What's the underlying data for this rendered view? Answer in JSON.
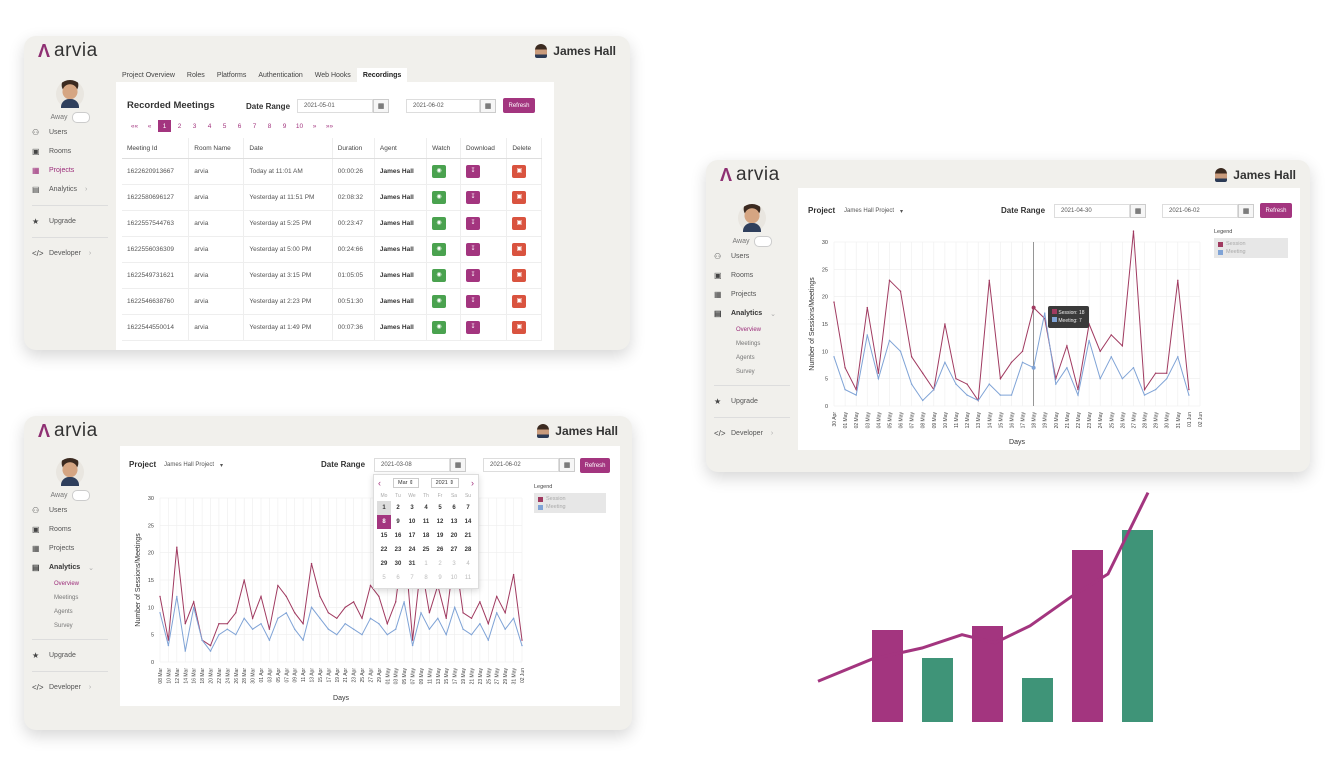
{
  "brand": {
    "name": "arvia",
    "user_name": "James Hall"
  },
  "sidebar": {
    "away_label": "Away",
    "items": [
      {
        "label": "Users",
        "icon": "users-icon"
      },
      {
        "label": "Rooms",
        "icon": "rooms-icon"
      },
      {
        "label": "Projects",
        "icon": "projects-icon"
      },
      {
        "label": "Analytics",
        "icon": "analytics-icon"
      },
      {
        "label": "Upgrade",
        "icon": "star-icon"
      },
      {
        "label": "Developer",
        "icon": "code-icon"
      }
    ],
    "analytics_sub": [
      "Overview",
      "Meetings",
      "Agents",
      "Survey"
    ]
  },
  "recordings": {
    "tabs": [
      "Project Overview",
      "Roles",
      "Platforms",
      "Authentication",
      "Web Hooks",
      "Recordings"
    ],
    "active_tab": "Recordings",
    "title": "Recorded Meetings",
    "date_range_label": "Date Range",
    "date_from": "2021-05-01",
    "date_to": "2021-06-02",
    "refresh_label": "Refresh",
    "pager": [
      "««",
      "«",
      "1",
      "2",
      "3",
      "4",
      "5",
      "6",
      "7",
      "8",
      "9",
      "10",
      "»",
      "»»"
    ],
    "pager_active": "1",
    "columns": [
      "Meeting Id",
      "Room Name",
      "Date",
      "Duration",
      "Agent",
      "Watch",
      "Download",
      "Delete"
    ],
    "rows": [
      [
        "1622620913667",
        "arvia",
        "Today at 11:01 AM",
        "00:00:26",
        "James Hall"
      ],
      [
        "1622580696127",
        "arvia",
        "Yesterday at 11:51 PM",
        "02:08:32",
        "James Hall"
      ],
      [
        "1622557544763",
        "arvia",
        "Yesterday at 5:25 PM",
        "00:23:47",
        "James Hall"
      ],
      [
        "1622556036309",
        "arvia",
        "Yesterday at 5:00 PM",
        "00:24:66",
        "James Hall"
      ],
      [
        "1622549731621",
        "arvia",
        "Yesterday at 3:15 PM",
        "01:05:05",
        "James Hall"
      ],
      [
        "1622546638760",
        "arvia",
        "Yesterday at 2:23 PM",
        "00:51:30",
        "James Hall"
      ],
      [
        "1622544550014",
        "arvia",
        "Yesterday at 1:49 PM",
        "00:07:36",
        "James Hall"
      ]
    ]
  },
  "analytics_right": {
    "project_label": "Project",
    "project_value": "James Hall Project",
    "date_range_label": "Date Range",
    "date_from": "2021-04-30",
    "date_to": "2021-06-02",
    "refresh_label": "Refresh",
    "legend_title": "Legend",
    "tooltip_session": "Session: 18",
    "tooltip_meeting": "Meeting: 7"
  },
  "analytics_left": {
    "project_label": "Project",
    "project_value": "James Hall Project",
    "date_range_label": "Date Range",
    "date_from": "2021-03-08",
    "date_to": "2021-06-02",
    "refresh_label": "Refresh",
    "legend_title": "Legend",
    "calendar": {
      "month": "Mar",
      "year": "2021",
      "dow": [
        "Mo",
        "Tu",
        "We",
        "Th",
        "Fr",
        "Sa",
        "Su"
      ],
      "days": [
        "1",
        "2",
        "3",
        "4",
        "5",
        "6",
        "7",
        "8",
        "9",
        "10",
        "11",
        "12",
        "13",
        "14",
        "15",
        "16",
        "17",
        "18",
        "19",
        "20",
        "21",
        "22",
        "23",
        "24",
        "25",
        "26",
        "27",
        "28",
        "29",
        "30",
        "31",
        "1",
        "2",
        "3",
        "4",
        "5",
        "6",
        "7",
        "8",
        "9",
        "10",
        "11"
      ],
      "selected": "8"
    }
  },
  "colors": {
    "accent": "#a3357f",
    "session": "#a03a60",
    "meeting": "#7fa3d6",
    "bar_green": "#3f9478",
    "bar_purple": "#a3357f"
  },
  "chart_data": [
    {
      "type": "line",
      "title": "",
      "xlabel": "Days",
      "ylabel": "Number of Sessions/Meetings",
      "ylim": [
        0,
        30
      ],
      "yticks": [
        0,
        5,
        10,
        15,
        20,
        25,
        30
      ],
      "legend": "top-right",
      "categories": [
        "30 Apr",
        "01 May",
        "02 May",
        "03 May",
        "04 May",
        "05 May",
        "06 May",
        "07 May",
        "08 May",
        "09 May",
        "10 May",
        "11 May",
        "12 May",
        "13 May",
        "14 May",
        "15 May",
        "16 May",
        "17 May",
        "18 May",
        "19 May",
        "20 May",
        "21 May",
        "22 May",
        "23 May",
        "24 May",
        "25 May",
        "26 May",
        "27 May",
        "28 May",
        "29 May",
        "30 May",
        "31 May",
        "01 Jun",
        "02 Jun"
      ],
      "series": [
        {
          "name": "Session",
          "values": [
            19,
            7,
            3,
            18,
            6,
            23,
            21,
            9,
            6,
            3,
            15,
            5,
            4,
            1,
            23,
            5,
            8,
            10,
            18,
            16,
            5,
            11,
            3,
            15,
            10,
            13,
            11,
            32,
            3,
            6,
            6,
            23,
            3,
            null
          ]
        },
        {
          "name": "Meeting",
          "values": [
            9,
            3,
            2,
            13,
            5,
            12,
            10,
            4,
            1,
            3,
            8,
            4,
            2,
            1,
            4,
            2,
            2,
            8,
            7,
            17,
            4,
            7,
            2,
            12,
            5,
            9,
            5,
            7,
            2,
            3,
            5,
            9,
            2,
            null
          ]
        }
      ]
    },
    {
      "type": "line",
      "title": "",
      "xlabel": "Days",
      "ylabel": "Number of Sessions/Meetings",
      "ylim": [
        0,
        30
      ],
      "yticks": [
        0,
        5,
        10,
        15,
        20,
        25,
        30
      ],
      "legend": "top-right",
      "categories": [
        "08 Mar",
        "10 Mar",
        "12 Mar",
        "14 Mar",
        "16 Mar",
        "18 Mar",
        "20 Mar",
        "22 Mar",
        "24 Mar",
        "26 Mar",
        "28 Mar",
        "30 Mar",
        "01 Apr",
        "03 Apr",
        "05 Apr",
        "07 Apr",
        "09 Apr",
        "11 Apr",
        "13 Apr",
        "15 Apr",
        "17 Apr",
        "19 Apr",
        "21 Apr",
        "23 Apr",
        "25 Apr",
        "27 Apr",
        "29 Apr",
        "01 May",
        "03 May",
        "05 May",
        "07 May",
        "09 May",
        "11 May",
        "13 May",
        "15 May",
        "17 May",
        "19 May",
        "21 May",
        "23 May",
        "25 May",
        "27 May",
        "29 May",
        "31 May",
        "02 Jun"
      ],
      "series": [
        {
          "name": "Session",
          "values": [
            12,
            4,
            21,
            7,
            11,
            4,
            3,
            7,
            7,
            9,
            15,
            8,
            12,
            6,
            14,
            12,
            9,
            7,
            18,
            12,
            9,
            8,
            10,
            11,
            8,
            14,
            12,
            7,
            11,
            23,
            4,
            18,
            9,
            14,
            8,
            20,
            9,
            8,
            11,
            7,
            12,
            9,
            16,
            4
          ]
        },
        {
          "name": "Meeting",
          "values": [
            9,
            3,
            12,
            2,
            10,
            4,
            2,
            5,
            6,
            5,
            8,
            6,
            7,
            4,
            8,
            9,
            6,
            4,
            10,
            8,
            6,
            5,
            7,
            6,
            5,
            8,
            7,
            5,
            6,
            11,
            3,
            9,
            6,
            8,
            5,
            10,
            6,
            5,
            7,
            4,
            9,
            6,
            8,
            3
          ]
        }
      ]
    },
    {
      "type": "bar",
      "title": "",
      "values": [
        11.5,
        8,
        12,
        5.5,
        21.5,
        24
      ],
      "colors": [
        "#a3357f",
        "#3f9478",
        "#a3357f",
        "#3f9478",
        "#a3357f",
        "#3f9478"
      ],
      "trend_line": [
        5.5,
        8.5,
        10,
        11.8,
        10.7,
        13,
        17,
        20,
        31
      ]
    }
  ]
}
